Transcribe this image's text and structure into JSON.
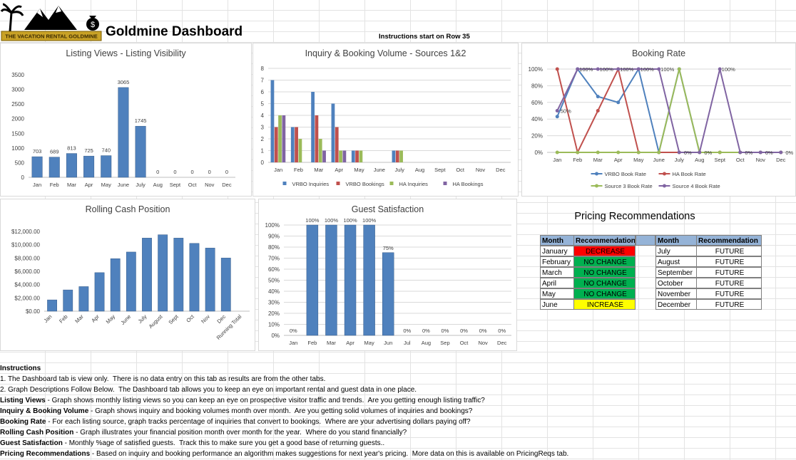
{
  "header": {
    "logo_text": "THE VACATION RENTAL GOLDMINE",
    "title": "Goldmine Dashboard",
    "note": "Instructions start on Row 35"
  },
  "chart_data": [
    {
      "type": "bar",
      "title": "Listing Views - Listing Visibility",
      "categories": [
        "Jan",
        "Feb",
        "Mar",
        "Apr",
        "May",
        "June",
        "July",
        "Aug",
        "Sept",
        "Oct",
        "Nov",
        "Dec"
      ],
      "values": [
        703,
        689,
        813,
        725,
        740,
        3065,
        1745,
        0,
        0,
        0,
        0,
        0
      ],
      "color": "#4f81bd",
      "data_labels": true,
      "ylim": [
        0,
        3500
      ],
      "yticks": [
        0,
        500,
        1000,
        1500,
        2000,
        2500,
        3000,
        3500
      ],
      "grid": false
    },
    {
      "type": "bar",
      "title": "Inquiry & Booking Volume - Sources 1&2",
      "categories": [
        "Jan",
        "Feb",
        "Mar",
        "Apr",
        "May",
        "June",
        "July",
        "Aug",
        "Sept",
        "Oct",
        "Nov",
        "Dec"
      ],
      "series": [
        {
          "name": "VRBO Inquiries",
          "color": "#4f81bd",
          "values": [
            7,
            3,
            6,
            5,
            1,
            0,
            1,
            0,
            0,
            0,
            0,
            0
          ]
        },
        {
          "name": "VRBO Bookings",
          "color": "#c0504d",
          "values": [
            3,
            3,
            4,
            3,
            1,
            0,
            1,
            0,
            0,
            0,
            0,
            0
          ]
        },
        {
          "name": "HA Inquiries",
          "color": "#9bbb59",
          "values": [
            4,
            2,
            2,
            1,
            1,
            0,
            1,
            0,
            0,
            0,
            0,
            0
          ]
        },
        {
          "name": "HA Bookings",
          "color": "#8064a2",
          "values": [
            4,
            0,
            1,
            1,
            0,
            0,
            0,
            0,
            0,
            0,
            0,
            0
          ]
        }
      ],
      "ylim": [
        0,
        8
      ],
      "yticks": [
        0,
        1,
        2,
        3,
        4,
        5,
        6,
        7,
        8
      ],
      "grid": true,
      "legend": "bottom"
    },
    {
      "type": "line",
      "title": "Booking Rate",
      "categories": [
        "Jan",
        "Feb",
        "Mar",
        "Apr",
        "May",
        "June",
        "July",
        "Aug",
        "Sept",
        "Oct",
        "Nov",
        "Dec"
      ],
      "series": [
        {
          "name": "VRBO Book Rate",
          "color": "#4f81bd",
          "values": [
            43,
            100,
            67,
            60,
            100,
            0,
            100,
            0,
            0,
            0,
            0,
            0
          ]
        },
        {
          "name": "HA Book Rate",
          "color": "#c0504d",
          "values": [
            100,
            0,
            50,
            100,
            0,
            0,
            0,
            0,
            0,
            0,
            0,
            0
          ]
        },
        {
          "name": "Source 3 Book Rate",
          "color": "#9bbb59",
          "values": [
            0,
            0,
            0,
            0,
            0,
            0,
            100,
            0,
            0,
            0,
            0,
            0
          ]
        },
        {
          "name": "Source 4 Book Rate",
          "color": "#8064a2",
          "values": [
            50,
            100,
            100,
            100,
            100,
            100,
            0,
            0,
            100,
            0,
            0,
            0
          ],
          "value_labels": [
            "50%",
            "100%",
            "100%",
            "100%",
            "100%",
            "100%",
            "0%",
            "0%",
            "100%",
            "0%",
            "0%",
            "0%"
          ]
        }
      ],
      "ylim": [
        0,
        100
      ],
      "yticks": [
        {
          "value": 0,
          "label": "0%"
        },
        {
          "value": 20,
          "label": "20%"
        },
        {
          "value": 40,
          "label": "40%"
        },
        {
          "value": 60,
          "label": "60%"
        },
        {
          "value": 80,
          "label": "80%"
        },
        {
          "value": 100,
          "label": "100%"
        }
      ],
      "grid": true,
      "legend": "bottom"
    },
    {
      "type": "bar",
      "title": "Rolling Cash Position",
      "categories": [
        "Jan",
        "Feb",
        "Mar",
        "Apr",
        "May",
        "June",
        "July",
        "August",
        "Sept",
        "Oct",
        "Nov",
        "Dec",
        "Running Total"
      ],
      "values": [
        1700,
        3200,
        3700,
        5800,
        7900,
        8900,
        11000,
        11500,
        11000,
        10200,
        9500,
        8000,
        null
      ],
      "color": "#4f81bd",
      "ylim": [
        0,
        12000
      ],
      "yticks": [
        {
          "value": 0,
          "label": "$0.00"
        },
        {
          "value": 2000,
          "label": "$2,000.00"
        },
        {
          "value": 4000,
          "label": "$4,000.00"
        },
        {
          "value": 6000,
          "label": "$6,000.00"
        },
        {
          "value": 8000,
          "label": "$8,000.00"
        },
        {
          "value": 10000,
          "label": "$10,000.00"
        },
        {
          "value": 12000,
          "label": "$12,000.00"
        }
      ],
      "grid": false,
      "rotate_labels": true
    },
    {
      "type": "bar",
      "title": "Guest Satisfaction",
      "categories": [
        "Jan",
        "Feb",
        "Mar",
        "Apr",
        "May",
        "Jun",
        "Jul",
        "Aug",
        "Sep",
        "Oct",
        "Nov",
        "Dec"
      ],
      "values": [
        0,
        100,
        100,
        100,
        100,
        75,
        0,
        0,
        0,
        0,
        0,
        0
      ],
      "value_labels": [
        "0%",
        "100%",
        "100%",
        "100%",
        "100%",
        "75%",
        "0%",
        "0%",
        "0%",
        "0%",
        "0%",
        "0%"
      ],
      "color": "#4f81bd",
      "ylim": [
        0,
        100
      ],
      "yticks": [
        {
          "value": 0,
          "label": "0%"
        },
        {
          "value": 10,
          "label": "10%"
        },
        {
          "value": 20,
          "label": "20%"
        },
        {
          "value": 30,
          "label": "30%"
        },
        {
          "value": 40,
          "label": "40%"
        },
        {
          "value": 50,
          "label": "50%"
        },
        {
          "value": 60,
          "label": "60%"
        },
        {
          "value": 70,
          "label": "70%"
        },
        {
          "value": 80,
          "label": "80%"
        },
        {
          "value": 90,
          "label": "90%"
        },
        {
          "value": 100,
          "label": "100%"
        }
      ],
      "grid": true
    }
  ],
  "pricing": {
    "title": "Pricing Recommendations",
    "columns": [
      "Month",
      "Recommendation"
    ],
    "left": [
      {
        "month": "January",
        "recommendation": "DECREASE",
        "color": "#ff0000"
      },
      {
        "month": "February",
        "recommendation": "NO CHANGE",
        "color": "#00b050"
      },
      {
        "month": "March",
        "recommendation": "NO CHANGE",
        "color": "#00b050"
      },
      {
        "month": "April",
        "recommendation": "NO CHANGE",
        "color": "#00b050"
      },
      {
        "month": "May",
        "recommendation": "NO CHANGE",
        "color": "#00b050"
      },
      {
        "month": "June",
        "recommendation": "INCREASE",
        "color": "#ffff00"
      }
    ],
    "right": [
      {
        "month": "July",
        "recommendation": "FUTURE",
        "color": "#ffffff"
      },
      {
        "month": "August",
        "recommendation": "FUTURE",
        "color": "#ffffff"
      },
      {
        "month": "September",
        "recommendation": "FUTURE",
        "color": "#ffffff"
      },
      {
        "month": "October",
        "recommendation": "FUTURE",
        "color": "#ffffff"
      },
      {
        "month": "November",
        "recommendation": "FUTURE",
        "color": "#ffffff"
      },
      {
        "month": "December",
        "recommendation": "FUTURE",
        "color": "#ffffff"
      }
    ]
  },
  "instructions": {
    "heading": "Instructions",
    "items": [
      {
        "text": "1. The Dashboard tab is view only.  There is no data entry on this tab as results are from the other tabs."
      },
      {
        "text": "2. Graph Descriptions Follow Below.  The Dashboard tab allows you to keep an eye on important rental and guest data in one place."
      },
      {
        "lead": "Listing Views",
        "text": " - Graph shows monthly listing views so you can keep an eye on prospective visitor traffic and trends.  Are you getting enough listing traffic?"
      },
      {
        "lead": "Inquiry & Booking Volume",
        "text": " - Graph shows inquiry and booking volumes month over month.  Are you getting solid volumes of inquiries and bookings?"
      },
      {
        "lead": "Booking Rate",
        "text": " - For each listing source, graph tracks percentage of inquiries that convert to bookings.  Where are your advertising dollars paying off?"
      },
      {
        "lead": "Rolling Cash Position",
        "text": " - Graph illustrates your financial position month over month for the year.  Where do you stand financially?"
      },
      {
        "lead": "Guest Satisfaction",
        "text": " - Monthly %age of satisfied guests.  Track this to make sure you get a good base of returning guests.."
      },
      {
        "lead": "Pricing Recommendations",
        "text": " - Based on inquiry and booking performance an algorithm makes suggestions for next year's pricing.  More data on this is available on PricingReqs tab."
      }
    ]
  }
}
